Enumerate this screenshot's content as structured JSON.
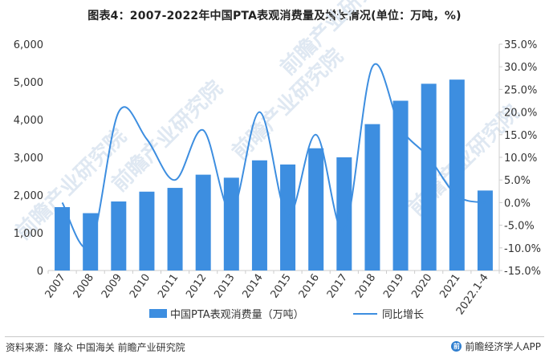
{
  "header": {
    "title": "图表4：2007-2022年中国PTA表观消费量及增长情况(单位：万吨，%)"
  },
  "footer": {
    "source": "资料来源：隆众  中国海关  前瞻产业研究院",
    "brand": "前瞻经济学人APP"
  },
  "watermark": {
    "text": "前瞻产业研究院"
  },
  "colors": {
    "bar": "#3d8ee0",
    "line": "#3d8ee0",
    "axis": "#cccccc",
    "text": "#333333"
  },
  "chart_data": {
    "type": "bar+line",
    "categories": [
      "2007",
      "2008",
      "2009",
      "2010",
      "2011",
      "2012",
      "2013",
      "2014",
      "2015",
      "2016",
      "2017",
      "2018",
      "2019",
      "2020",
      "2021",
      "2022.1-4"
    ],
    "y_left": {
      "ticks": [
        "0",
        "1,000",
        "2,000",
        "3,000",
        "4,000",
        "5,000",
        "6,000"
      ],
      "range": [
        0,
        6000
      ]
    },
    "y_right": {
      "ticks": [
        "-15.0%",
        "-10.0%",
        "-5.0%",
        "0.0%",
        "5.0%",
        "10.0%",
        "15.0%",
        "20.0%",
        "25.0%",
        "30.0%",
        "35.0%"
      ],
      "range": [
        -15,
        35
      ]
    },
    "series": [
      {
        "name": "中国PTA表观消费量（万吨）",
        "type": "bar",
        "axis": "left",
        "values": [
          1680,
          1520,
          1830,
          2090,
          2190,
          2540,
          2460,
          2920,
          2810,
          3240,
          3000,
          3880,
          4500,
          4950,
          5060,
          2120
        ]
      },
      {
        "name": "同比增长",
        "type": "line",
        "axis": "right",
        "values": [
          0.0,
          -9.5,
          20.0,
          14.0,
          5.0,
          16.0,
          -2.0,
          20.0,
          -3.0,
          15.0,
          -6.0,
          30.0,
          16.5,
          10.0,
          1.5,
          0.0
        ]
      }
    ],
    "legend": {
      "position": "bottom"
    },
    "grid": false
  }
}
